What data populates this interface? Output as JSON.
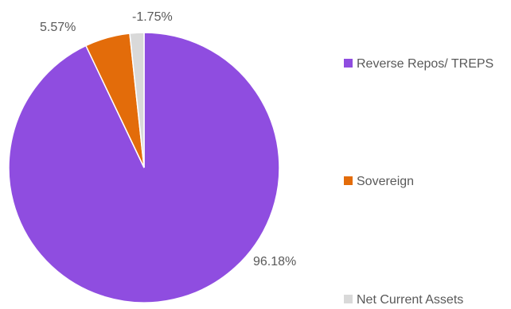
{
  "chart_data": {
    "type": "pie",
    "title": "",
    "categories": [
      "Reverse Repos/ TREPS",
      "Sovereign",
      "Net Current Assets"
    ],
    "values": [
      96.18,
      5.57,
      -1.75
    ],
    "data_labels": [
      "96.18%",
      "5.57%",
      "-1.75%"
    ],
    "colors": [
      "#8f4de0",
      "#e36c0a",
      "#d9d9d9"
    ],
    "legend_position": "right",
    "start_angle_deg": 0,
    "direction": "clockwise"
  }
}
